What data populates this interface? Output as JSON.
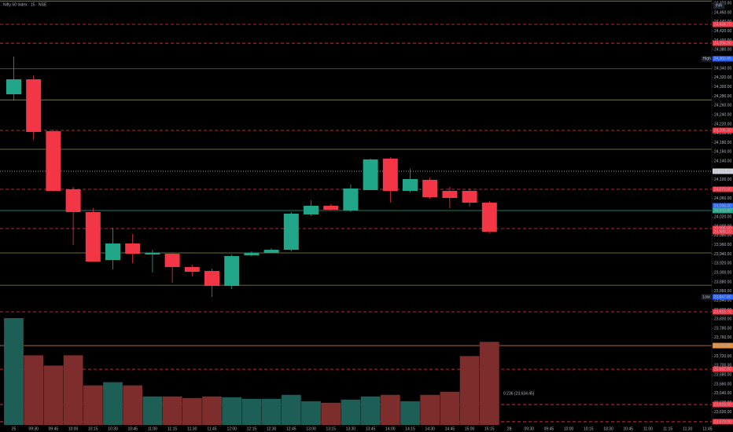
{
  "chart_data": {
    "type": "candlestick",
    "title": "Nifty 50 Index · 15 · NSE",
    "currency": "INR",
    "annotation": "0.236 (23,634.45)",
    "up_color": "#22a68a",
    "down_color": "#f23645",
    "volume_up_color": "#1d5f57",
    "volume_down_color": "#7d2d2b",
    "categories": [
      "25",
      "09:30",
      "09:45",
      "10:00",
      "10:15",
      "10:30",
      "10:45",
      "11:00",
      "11:15",
      "11:30",
      "11:45",
      "12:00",
      "12:15",
      "12:30",
      "12:45",
      "13:00",
      "13:15",
      "13:30",
      "13:45",
      "14:00",
      "14:15",
      "14:30",
      "14:45",
      "15:00",
      "15:15",
      "28",
      "09:30",
      "09:45",
      "10:00",
      "10:15",
      "10:30",
      "10:45",
      "11:00",
      "11:15",
      "11:30",
      "11:45"
    ],
    "open": [
      24284.1,
      24316.3,
      24204.6,
      24079.5,
      24030.5,
      23927.3,
      23962.8,
      23939.1,
      23940.8,
      23912.1,
      23903.6,
      23871.5,
      23937.4,
      23942.5,
      23949.3,
      24025.4,
      24044.0,
      24033.8,
      24077.8,
      24145.5,
      24076.1,
      24099.8,
      24076.1,
      24076.1,
      24050.7,
      null,
      null,
      null,
      null,
      null,
      null,
      null,
      null,
      null,
      null,
      null
    ],
    "high": [
      24365.3,
      24324.7,
      24208.0,
      24084.6,
      24038.9,
      23996.6,
      23983.1,
      23949.3,
      23942.5,
      23917.1,
      23908.7,
      23939.1,
      23945.9,
      23952.7,
      24030.5,
      24055.8,
      24047.4,
      24089.6,
      24145.5,
      24148.8,
      24123.5,
      24104.9,
      24084.6,
      24081.2,
      24054.1,
      null,
      null,
      null,
      null,
      null,
      null,
      null,
      null,
      null,
      null,
      null
    ],
    "low": [
      24270.6,
      24186.0,
      24076.1,
      23959.4,
      23923.9,
      23907.0,
      23920.5,
      23900.2,
      23878.2,
      23891.8,
      23847.8,
      23864.7,
      23935.7,
      23942.5,
      23945.9,
      24022.0,
      24033.8,
      24030.5,
      24077.8,
      24050.7,
      24072.7,
      24059.2,
      24038.9,
      24042.3,
      23984.8,
      null,
      null,
      null,
      null,
      null,
      null,
      null,
      null,
      null,
      null,
      null
    ],
    "close": [
      24316.3,
      24203.0,
      24076.1,
      24030.5,
      23923.9,
      23962.8,
      23940.8,
      23942.5,
      23912.1,
      23901.9,
      23871.5,
      23935.7,
      23942.5,
      23949.3,
      24027.1,
      24044.0,
      24035.5,
      24081.2,
      24143.8,
      24076.1,
      24101.5,
      24062.6,
      24060.9,
      24050.7,
      23988.2,
      null,
      null,
      null,
      null,
      null,
      null,
      null,
      null,
      null,
      null,
      null
    ],
    "volume": [
      135,
      88,
      75,
      88,
      50,
      54,
      50,
      36,
      36,
      34,
      36,
      35,
      33,
      33,
      38,
      30,
      28,
      32,
      36,
      38,
      30,
      38,
      42,
      87,
      105,
      null,
      null,
      null,
      null,
      null,
      null,
      null,
      null,
      null,
      null,
      null
    ],
    "ylim": [
      23556.9,
      24487.1
    ],
    "yticks": [
      {
        "value": 24480,
        "label": "24,480.00"
      },
      {
        "value": 24460,
        "label": "24,460.00"
      },
      {
        "value": 24440,
        "label": "24,440.00"
      },
      {
        "value": 24420,
        "label": "24,420.00"
      },
      {
        "value": 24400,
        "label": "24,400.00"
      },
      {
        "value": 24380,
        "label": "24,380.00"
      },
      {
        "value": 24360,
        "label": "24,360.00"
      },
      {
        "value": 24340,
        "label": "24,340.00"
      },
      {
        "value": 24320,
        "label": "24,320.00"
      },
      {
        "value": 24300,
        "label": "24,300.00"
      },
      {
        "value": 24280,
        "label": "24,280.00"
      },
      {
        "value": 24260,
        "label": "24,260.00"
      },
      {
        "value": 24240,
        "label": "24,240.00"
      },
      {
        "value": 24220,
        "label": "24,220.00"
      },
      {
        "value": 24200,
        "label": "24,200.00"
      },
      {
        "value": 24180,
        "label": "24,180.00"
      },
      {
        "value": 24160,
        "label": "24,160.00"
      },
      {
        "value": 24140,
        "label": "24,140.00"
      },
      {
        "value": 24120,
        "label": "24,120.00"
      },
      {
        "value": 24100,
        "label": "24,100.00"
      },
      {
        "value": 24080,
        "label": "24,080.00"
      },
      {
        "value": 24060,
        "label": "24,060.00"
      },
      {
        "value": 24040,
        "label": "24,040.00"
      },
      {
        "value": 24020,
        "label": "24,020.00"
      },
      {
        "value": 24000,
        "label": "24,000.00"
      },
      {
        "value": 23980,
        "label": "23,980.00"
      },
      {
        "value": 23960,
        "label": "23,960.00"
      },
      {
        "value": 23940,
        "label": "23,940.00"
      },
      {
        "value": 23920,
        "label": "23,920.00"
      },
      {
        "value": 23900,
        "label": "23,900.00"
      },
      {
        "value": 23880,
        "label": "23,880.00"
      },
      {
        "value": 23860,
        "label": "23,860.00"
      },
      {
        "value": 23840,
        "label": "23,840.00"
      },
      {
        "value": 23820,
        "label": "23,820.00"
      },
      {
        "value": 23800,
        "label": "23,800.00"
      },
      {
        "value": 23780,
        "label": "23,780.00"
      },
      {
        "value": 23760,
        "label": "23,760.00"
      },
      {
        "value": 23740,
        "label": "23,740.00"
      },
      {
        "value": 23720,
        "label": "23,720.00"
      },
      {
        "value": 23700,
        "label": "23,700.00"
      },
      {
        "value": 23680,
        "label": "23,680.00"
      },
      {
        "value": 23660,
        "label": "23,660.00"
      },
      {
        "value": 23640,
        "label": "23,640.00"
      },
      {
        "value": 23620,
        "label": "23,620.00"
      },
      {
        "value": 23600,
        "label": "23,600.00"
      },
      {
        "value": 23580,
        "label": "23,580.00"
      }
    ],
    "levels": [
      {
        "value": 24484.9,
        "color": "#8a8f3c",
        "style": "solid"
      },
      {
        "value": 24434.7,
        "label": "24,434.70",
        "color": "#f23645",
        "style": "dashed"
      },
      {
        "value": 24394.0,
        "label": "24,394.00",
        "color": "#f23645",
        "style": "dashed"
      },
      {
        "value": 24360.45,
        "label": "24,360.45",
        "tag": "High",
        "color": "#2962ff",
        "style": "none"
      },
      {
        "value": 24339.0,
        "color": "#b02a2a",
        "style": "solid"
      },
      {
        "value": 24272.0,
        "color": "#8a8f3c",
        "style": "solid"
      },
      {
        "value": 24206.3,
        "label": "24,206.30",
        "color": "#f23645",
        "style": "dashed"
      },
      {
        "value": 24165.7,
        "color": "#8a8f3c",
        "style": "solid"
      },
      {
        "value": 24118.4,
        "label": "24,118.40",
        "color": "#d1d4dc",
        "style": "dotted"
      },
      {
        "value": 24079.5,
        "label": "24,079.50",
        "color": "#f23645",
        "style": "dashed"
      },
      {
        "value": 24044.0,
        "label": "24,044.00",
        "color": "#2962ff",
        "style": "none"
      },
      {
        "value": 24033.8,
        "label": "24,033.80",
        "color": "#22a68a",
        "style": "solid"
      },
      {
        "value": 23995.0,
        "label": "23,995.00",
        "color": "#f23645",
        "style": "dashed"
      },
      {
        "value": 23988.2,
        "label": "23,988.20",
        "color": "#f23645",
        "style": "none"
      },
      {
        "value": 23942.5,
        "color": "#8a8f3c",
        "style": "solid"
      },
      {
        "value": 23873.0,
        "color": "#8a8f3c",
        "style": "solid"
      },
      {
        "value": 23847.8,
        "label": "23,847.80",
        "tag": "Low",
        "color": "#2962ff",
        "style": "none"
      },
      {
        "value": 23815.7,
        "label": "23,815.70",
        "color": "#f23645",
        "style": "dashed"
      },
      {
        "value": 23743.0,
        "label": "23,743.00",
        "color": "#e08a3a",
        "style": "solid"
      },
      {
        "value": 23692.0,
        "label": "23,692.00",
        "color": "#f23645",
        "style": "dashed"
      },
      {
        "value": 23616.0,
        "label": "23,616.00",
        "color": "#f23645",
        "style": "dashed"
      },
      {
        "value": 23579.0,
        "label": "23,579.00",
        "color": "#f23645",
        "style": "dashed"
      }
    ]
  }
}
